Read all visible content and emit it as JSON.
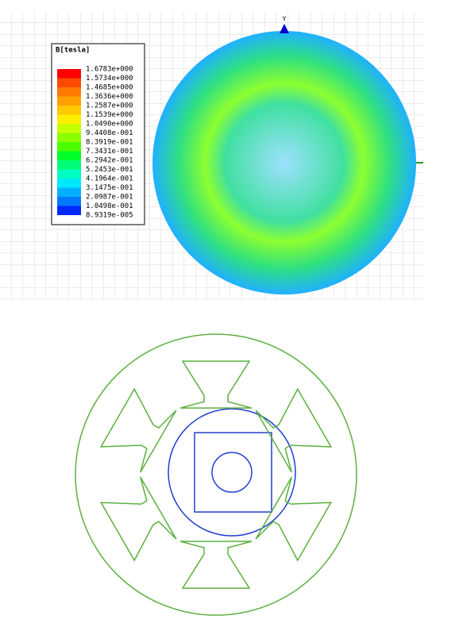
{
  "legend": {
    "title": "B[tesla]",
    "labels": [
      "1.6783e+000",
      "1.5734e+000",
      "1.4685e+000",
      "1.3636e+000",
      "1.2587e+000",
      "1.1539e+000",
      "1.0490e+000",
      "9.4408e-001",
      "8.3919e-001",
      "7.3431e-001",
      "6.2942e-001",
      "5.2453e-001",
      "4.1964e-001",
      "3.1475e-001",
      "2.0987e-001",
      "1.0498e-001",
      "8.9319e-005"
    ],
    "colors": [
      "#ff0000",
      "#ff4a00",
      "#ff7a00",
      "#ffa000",
      "#ffc800",
      "#ffee00",
      "#c8ff00",
      "#8cff00",
      "#4cff00",
      "#00ff28",
      "#00ff78",
      "#00ffc0",
      "#00e8ff",
      "#00b0ff",
      "#0078ff",
      "#0028ff"
    ]
  },
  "axis_label": "Y"
}
